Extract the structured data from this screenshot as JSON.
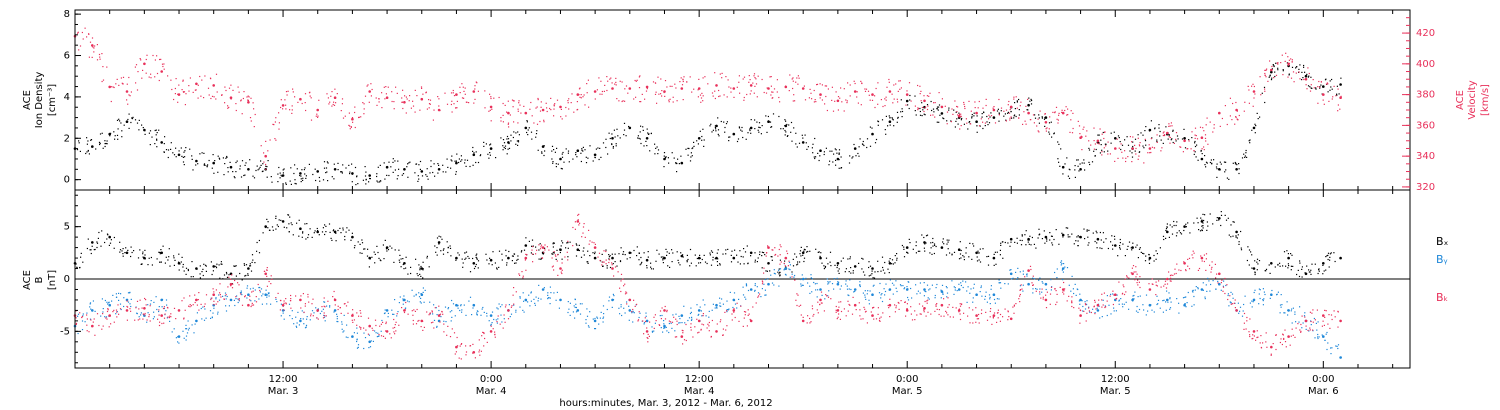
{
  "colors": {
    "black": "#000000",
    "pink": "#e8305a",
    "blue": "#1e87d8"
  },
  "xaxis": {
    "title": "hours:minutes, Mar.  3, 2012 - Mar.  6, 2012",
    "ticks": [
      {
        "t": 12,
        "time": "12:00",
        "date": "Mar. 3"
      },
      {
        "t": 24,
        "time": "0:00",
        "date": "Mar. 4"
      },
      {
        "t": 36,
        "time": "12:00",
        "date": "Mar. 4"
      },
      {
        "t": 48,
        "time": "0:00",
        "date": "Mar. 5"
      },
      {
        "t": 60,
        "time": "12:00",
        "date": "Mar. 5"
      },
      {
        "t": 72,
        "time": "0:00",
        "date": "Mar. 6"
      }
    ]
  },
  "chart_data": [
    {
      "type": "scatter",
      "panel": "top",
      "ylabel_left": [
        "ACE",
        "Ion Density",
        "[cm⁻³]"
      ],
      "ylabel_right": [
        "ACE",
        "Velocity",
        "[km/s]"
      ],
      "xlim_hours": [
        0,
        77
      ],
      "ylim_left": [
        -0.5,
        8.2
      ],
      "ylim_right": [
        318,
        435
      ],
      "yticks_left": [
        "0",
        "2",
        "4",
        "6",
        "8"
      ],
      "yticks_right": [
        "320",
        "340",
        "360",
        "380",
        "400",
        "420"
      ],
      "series": [
        {
          "name": "Ion Density",
          "axis": "left",
          "color": "black",
          "x": [
            0,
            1,
            2,
            3,
            4,
            5,
            6,
            7,
            8,
            9,
            10,
            11,
            12,
            13,
            14,
            15,
            16,
            17,
            18,
            19,
            20,
            21,
            22,
            23,
            24,
            25,
            26,
            27,
            28,
            29,
            30,
            31,
            32,
            33,
            34,
            35,
            36,
            37,
            38,
            39,
            40,
            41,
            42,
            43,
            44,
            45,
            46,
            47,
            48,
            49,
            50,
            51,
            52,
            53,
            54,
            55,
            56,
            57,
            58,
            59,
            60,
            61,
            62,
            63,
            64,
            65,
            66,
            67,
            68,
            69,
            70,
            71,
            72,
            73
          ],
          "y": [
            1.5,
            1.6,
            2.2,
            2.8,
            2.4,
            1.8,
            1.2,
            0.9,
            0.8,
            0.6,
            0.5,
            0.5,
            0.2,
            0.3,
            0.4,
            0.5,
            0.3,
            0.2,
            0.6,
            0.5,
            0.4,
            0.5,
            0.8,
            1.2,
            1.5,
            1.8,
            2.5,
            1.6,
            1.0,
            1.4,
            1.2,
            2.0,
            2.5,
            2.0,
            1.0,
            0.8,
            2.0,
            2.6,
            2.2,
            2.5,
            2.8,
            2.6,
            1.8,
            1.4,
            1.0,
            1.5,
            2.2,
            2.8,
            3.8,
            3.5,
            3.2,
            3.0,
            2.8,
            3.0,
            3.5,
            3.6,
            3.0,
            0.6,
            0.5,
            1.8,
            2.0,
            1.5,
            2.4,
            2.2,
            2.0,
            1.0,
            0.5,
            0.5,
            2.5,
            5.2,
            5.5,
            5.0,
            4.5,
            4.6
          ]
        },
        {
          "name": "Velocity",
          "axis": "right",
          "color": "pink",
          "x": [
            0,
            1,
            2,
            3,
            4,
            5,
            6,
            7,
            8,
            9,
            10,
            11,
            12,
            13,
            14,
            15,
            16,
            17,
            18,
            19,
            20,
            21,
            22,
            23,
            24,
            25,
            26,
            27,
            28,
            29,
            30,
            31,
            32,
            33,
            34,
            35,
            36,
            37,
            38,
            39,
            40,
            41,
            42,
            43,
            44,
            45,
            46,
            47,
            48,
            49,
            50,
            51,
            52,
            53,
            54,
            55,
            56,
            57,
            58,
            59,
            60,
            61,
            62,
            63,
            64,
            65,
            66,
            67,
            68,
            69,
            70,
            71,
            72,
            73
          ],
          "y": [
            418,
            412,
            385,
            382,
            400,
            395,
            380,
            387,
            386,
            378,
            375,
            340,
            373,
            377,
            370,
            378,
            364,
            382,
            378,
            375,
            377,
            370,
            380,
            382,
            372,
            368,
            368,
            370,
            372,
            380,
            382,
            384,
            384,
            385,
            382,
            384,
            384,
            386,
            384,
            386,
            384,
            385,
            384,
            380,
            376,
            382,
            380,
            382,
            380,
            376,
            372,
            366,
            368,
            370,
            372,
            368,
            362,
            368,
            352,
            350,
            345,
            345,
            345,
            355,
            350,
            352,
            368,
            370,
            382,
            396,
            400,
            390,
            380,
            378
          ]
        }
      ]
    },
    {
      "type": "scatter",
      "panel": "bottom",
      "ylabel_left": [
        "ACE",
        "B",
        "[nT]"
      ],
      "xlim_hours": [
        0,
        77
      ],
      "ylim": [
        -8.5,
        8.5
      ],
      "yticks": [
        "-5",
        "0",
        "5"
      ],
      "legend": [
        "Bₓ",
        "Bᵧ",
        "Bₖ"
      ],
      "series": [
        {
          "name": "Bx",
          "color": "black",
          "x": [
            0,
            1,
            2,
            3,
            4,
            5,
            6,
            7,
            8,
            9,
            10,
            11,
            12,
            13,
            14,
            15,
            16,
            17,
            18,
            19,
            20,
            21,
            22,
            23,
            24,
            25,
            26,
            27,
            28,
            29,
            30,
            31,
            32,
            33,
            34,
            35,
            36,
            37,
            38,
            39,
            40,
            41,
            42,
            43,
            44,
            45,
            46,
            47,
            48,
            49,
            50,
            51,
            52,
            53,
            54,
            55,
            56,
            57,
            58,
            59,
            60,
            61,
            62,
            63,
            64,
            65,
            66,
            67,
            68,
            69,
            70,
            71,
            72,
            73
          ],
          "y": [
            1.5,
            3.5,
            4.0,
            2.5,
            2.0,
            2.5,
            1.5,
            1.0,
            1.2,
            0.5,
            1.0,
            5.0,
            5.5,
            4.8,
            4.5,
            4.5,
            4.0,
            2.0,
            3.0,
            1.5,
            1.0,
            3.5,
            2.0,
            1.5,
            1.8,
            2.0,
            3.2,
            2.5,
            2.8,
            2.8,
            2.0,
            2.0,
            2.5,
            1.8,
            2.0,
            2.2,
            2.0,
            2.0,
            2.0,
            2.5,
            1.5,
            1.0,
            2.5,
            2.0,
            1.5,
            1.2,
            1.0,
            1.5,
            3.0,
            3.5,
            3.0,
            2.8,
            2.5,
            2.0,
            3.8,
            3.8,
            4.0,
            4.2,
            4.0,
            3.8,
            3.2,
            3.0,
            2.0,
            4.5,
            5.0,
            5.5,
            5.8,
            4.5,
            1.0,
            1.5,
            2.0,
            0.5,
            1.5,
            2.0
          ]
        },
        {
          "name": "By",
          "color": "blue",
          "x": [
            0,
            1,
            2,
            3,
            4,
            5,
            6,
            7,
            8,
            9,
            10,
            11,
            12,
            13,
            14,
            15,
            16,
            17,
            18,
            19,
            20,
            21,
            22,
            23,
            24,
            25,
            26,
            27,
            28,
            29,
            30,
            31,
            32,
            33,
            34,
            35,
            36,
            37,
            38,
            39,
            40,
            41,
            42,
            43,
            44,
            45,
            46,
            47,
            48,
            49,
            50,
            51,
            52,
            53,
            54,
            55,
            56,
            57,
            58,
            59,
            60,
            61,
            62,
            63,
            64,
            65,
            66,
            67,
            68,
            69,
            70,
            71,
            72,
            73
          ],
          "y": [
            -4.5,
            -3.0,
            -2.5,
            -2.0,
            -3.5,
            -2.0,
            -5.5,
            -4.0,
            -2.5,
            -2.0,
            -1.5,
            -1.5,
            -3.0,
            -4.0,
            -3.0,
            -3.0,
            -5.5,
            -6.0,
            -3.0,
            -2.0,
            -1.5,
            -4.0,
            -2.5,
            -2.5,
            -3.5,
            -3.0,
            -2.0,
            -1.0,
            -2.0,
            -3.0,
            -4.0,
            -2.0,
            -3.0,
            -4.0,
            -4.5,
            -3.5,
            -3.0,
            -2.5,
            -2.0,
            -1.0,
            -0.5,
            1.0,
            0.0,
            -1.0,
            -0.5,
            -1.0,
            -1.5,
            -1.0,
            -1.0,
            -1.0,
            -1.2,
            -1.0,
            -1.5,
            -1.5,
            0.5,
            -0.5,
            -0.5,
            1.0,
            -2.0,
            -3.0,
            -2.0,
            -2.0,
            -2.5,
            -2.0,
            -2.5,
            -1.0,
            -0.5,
            -3.0,
            -2.0,
            -1.5,
            -3.0,
            -4.0,
            -5.5,
            -7.5
          ]
        },
        {
          "name": "Bz",
          "color": "pink",
          "x": [
            0,
            1,
            2,
            3,
            4,
            5,
            6,
            7,
            8,
            9,
            10,
            11,
            12,
            13,
            14,
            15,
            16,
            17,
            18,
            19,
            20,
            21,
            22,
            23,
            24,
            25,
            26,
            27,
            28,
            29,
            30,
            31,
            32,
            33,
            34,
            35,
            36,
            37,
            38,
            39,
            40,
            41,
            42,
            43,
            44,
            45,
            46,
            47,
            48,
            49,
            50,
            51,
            52,
            53,
            54,
            55,
            56,
            57,
            58,
            59,
            60,
            61,
            62,
            63,
            64,
            65,
            66,
            67,
            68,
            69,
            70,
            71,
            72,
            73
          ],
          "y": [
            -3.5,
            -4.5,
            -3.5,
            -3.0,
            -2.8,
            -3.5,
            -3.0,
            -2.0,
            -1.5,
            -0.5,
            -2.5,
            0.5,
            -2.5,
            -2.0,
            -3.0,
            -2.0,
            -3.5,
            -4.5,
            -5.0,
            -3.0,
            -4.0,
            -3.5,
            -6.5,
            -7.0,
            -5.0,
            -3.0,
            2.0,
            3.0,
            1.0,
            5.5,
            3.0,
            1.0,
            -2.0,
            -5.0,
            -3.0,
            -5.5,
            -4.0,
            -5.0,
            -3.0,
            -4.0,
            3.0,
            2.0,
            -4.0,
            -2.0,
            -3.0,
            -2.5,
            -3.5,
            -2.5,
            -3.0,
            -2.8,
            -2.5,
            -3.0,
            -3.5,
            -3.5,
            -3.8,
            0.8,
            -2.0,
            -1.0,
            -3.5,
            -2.5,
            -1.5,
            0.5,
            -1.0,
            0.0,
            1.5,
            2.0,
            0.5,
            -3.0,
            -5.0,
            -6.5,
            -5.5,
            -4.0,
            -3.5,
            -4.0
          ]
        }
      ]
    }
  ]
}
